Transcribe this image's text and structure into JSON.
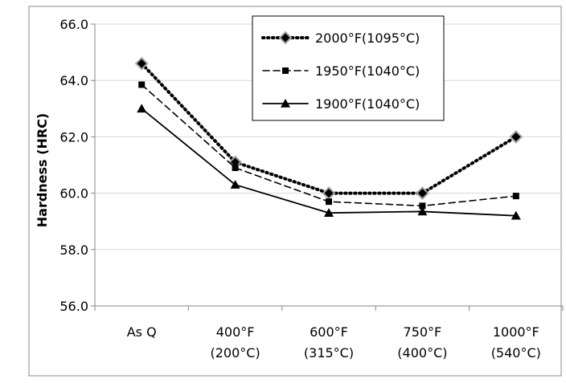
{
  "chart_data": {
    "type": "line",
    "title": "",
    "xlabel": "",
    "ylabel": "Hardness (HRC)",
    "categories": [
      [
        "As Q"
      ],
      [
        "400°F",
        "(200°C)"
      ],
      [
        "600°F",
        "(315°C)"
      ],
      [
        "750°F",
        "(400°C)"
      ],
      [
        "1000°F",
        "(540°C)"
      ]
    ],
    "ylim": [
      56.0,
      66.0
    ],
    "yticks": [
      "56.0",
      "58.0",
      "60.0",
      "62.0",
      "64.0",
      "66.0"
    ],
    "grid": "horizontal",
    "legend_position": "top-right",
    "series": [
      {
        "name": "2000°F(1095°C)",
        "style": "dotted",
        "marker": "diamond",
        "values": [
          64.6,
          61.1,
          60.0,
          60.0,
          62.0
        ]
      },
      {
        "name": "1950°F(1040°C)",
        "style": "dashed",
        "marker": "square",
        "values": [
          63.85,
          60.9,
          59.7,
          59.55,
          59.9
        ]
      },
      {
        "name": "1900°F(1040°C)",
        "style": "solid",
        "marker": "triangle",
        "values": [
          63.0,
          60.3,
          59.3,
          59.35,
          59.2
        ]
      }
    ]
  }
}
